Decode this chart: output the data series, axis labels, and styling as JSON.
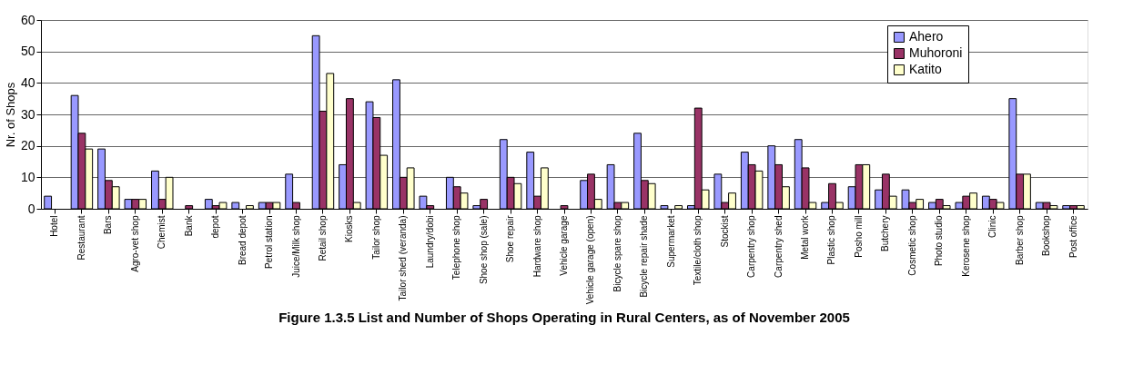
{
  "chart_data": {
    "type": "bar",
    "title": "Figure 1.3.5   List and Number of Shops Operating in Rural Centers, as of November 2005",
    "ylabel": "Nr. of Shops",
    "categories": [
      "Hotel",
      "Restaurant",
      "Bars",
      "Agro-vet shop",
      "Chemist",
      "Bank",
      "depot",
      "Bread depot",
      "Petrol station",
      "Juice/Milk shop",
      "Retail shop",
      "Kiosks",
      "Tailor shop",
      "Tailor shed (veranda)",
      "Laundry/dobi",
      "Telephone shop",
      "Shoe shop (sale)",
      "Shoe repair",
      "Hardware shop",
      "Vehicle garage",
      "Vehicle garage (open)",
      "Bicycle spare shop",
      "Bicycle repair shade",
      "Supermarket",
      "Textile/cloth shop",
      "Stockist",
      "Carpentry shop",
      "Carpentry shed",
      "Metal work",
      "Plastic shop",
      "Posho mill",
      "Butchery",
      "Cosmetic shop",
      "Photo studio",
      "Kerosene shop",
      "Clinic",
      "Barber shop",
      "Bookshop",
      "Post office"
    ],
    "series": [
      {
        "name": "Ahero",
        "color": "#9999ff",
        "values": [
          4,
          36,
          19,
          3,
          12,
          0,
          3,
          2,
          2,
          11,
          55,
          14,
          34,
          41,
          4,
          10,
          1,
          22,
          18,
          0,
          9,
          14,
          24,
          1,
          1,
          11,
          18,
          20,
          22,
          2,
          7,
          6,
          6,
          2,
          2,
          4,
          35,
          2,
          1
        ]
      },
      {
        "name": "Muhoroni",
        "color": "#993366",
        "values": [
          0,
          24,
          9,
          3,
          3,
          1,
          1,
          0,
          2,
          2,
          31,
          35,
          29,
          10,
          1,
          7,
          3,
          10,
          4,
          1,
          11,
          2,
          9,
          0,
          32,
          2,
          14,
          14,
          13,
          8,
          14,
          11,
          2,
          3,
          4,
          3,
          11,
          2,
          1
        ]
      },
      {
        "name": "Katito",
        "color": "#ffffcc",
        "values": [
          0,
          19,
          7,
          3,
          10,
          0,
          2,
          1,
          2,
          0,
          43,
          2,
          17,
          13,
          0,
          5,
          0,
          8,
          13,
          0,
          3,
          2,
          8,
          1,
          6,
          5,
          12,
          7,
          2,
          2,
          14,
          4,
          3,
          1,
          5,
          2,
          11,
          1,
          1
        ]
      }
    ],
    "ylim": [
      0,
      60
    ],
    "yticks": [
      0,
      10,
      20,
      30,
      40,
      50,
      60
    ],
    "grid": "y",
    "legend": "top right"
  }
}
